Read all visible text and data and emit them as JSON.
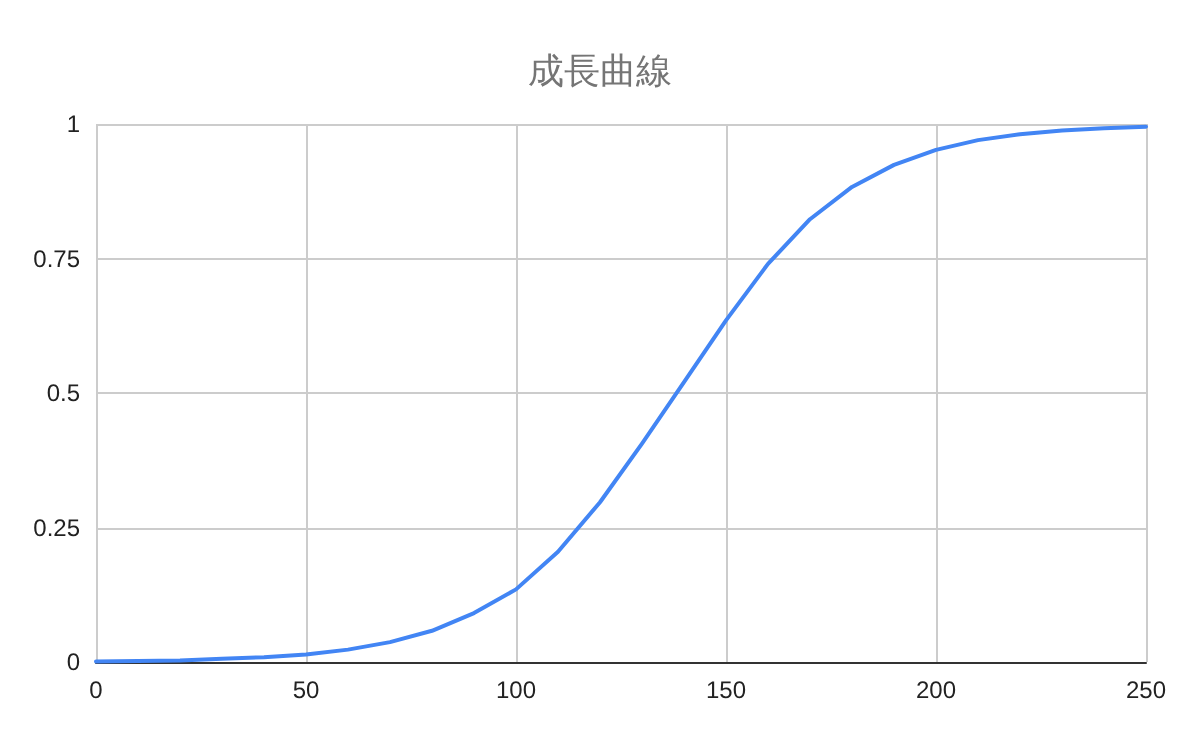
{
  "chart_data": {
    "type": "line",
    "title": "成長曲線",
    "x": [
      0,
      10,
      20,
      30,
      40,
      50,
      60,
      70,
      80,
      90,
      100,
      110,
      120,
      130,
      140,
      150,
      160,
      170,
      180,
      190,
      200,
      210,
      220,
      230,
      240,
      250
    ],
    "series": [
      {
        "color": "#4285f4",
        "values": [
          0.001,
          0.002,
          0.003,
          0.006,
          0.009,
          0.014,
          0.023,
          0.037,
          0.058,
          0.091,
          0.135,
          0.205,
          0.297,
          0.406,
          0.52,
          0.635,
          0.74,
          0.823,
          0.883,
          0.924,
          0.952,
          0.97,
          0.981,
          0.988,
          0.992,
          0.995
        ]
      }
    ],
    "xlim": [
      0,
      250
    ],
    "xticks": [
      0,
      50,
      100,
      150,
      200,
      250
    ],
    "ylim": [
      0,
      1
    ],
    "yticks": [
      0,
      0.25,
      0.5,
      0.75,
      1
    ],
    "grid": true,
    "marker": "none",
    "line_style": "solid"
  }
}
